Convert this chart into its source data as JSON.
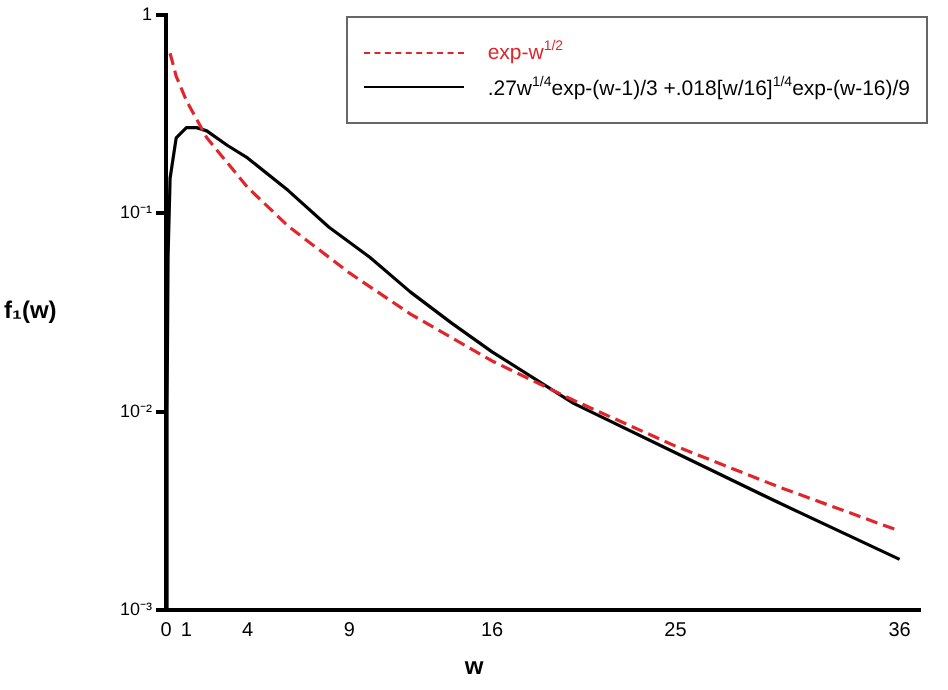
{
  "chart_data": {
    "type": "line",
    "xlabel": "w",
    "ylabel": "f₁(w)",
    "xlim": [
      0,
      37
    ],
    "xticks": [
      0,
      1,
      4,
      9,
      16,
      25,
      36
    ],
    "ylim": [
      0.001,
      1
    ],
    "yticks": [
      {
        "value": 0.001,
        "label": "10⁻³"
      },
      {
        "value": 0.01,
        "label": "10⁻²"
      },
      {
        "value": 0.1,
        "label": "10⁻¹"
      },
      1
    ],
    "log": "y",
    "grid": false,
    "legend": "top right",
    "marker": "none",
    "series": [
      {
        "name": "exp-w$^{1/2}$",
        "color": "#e0262b",
        "line_style": "dashed",
        "x": [
          0.2,
          0.5,
          1,
          2,
          4,
          6,
          9,
          12,
          16,
          20,
          25,
          30,
          36
        ],
        "values": [
          0.64,
          0.49,
          0.37,
          0.24,
          0.135,
          0.086,
          0.05,
          0.031,
          0.018,
          0.0114,
          0.0067,
          0.0042,
          0.0025
        ]
      },
      {
        "name": ".27w$^{1/4}$exp-(w-1)/3  +.018[w/16]$^{1/4}$exp-(w-16)/9",
        "color": "#000000",
        "line_style": "solid",
        "x": [
          0,
          0.05,
          0.1,
          0.2,
          0.5,
          1,
          1.5,
          2,
          3,
          4,
          6,
          8,
          10,
          12,
          14,
          16,
          20,
          25,
          30,
          36
        ],
        "values": [
          0.001,
          0.01,
          0.06,
          0.15,
          0.24,
          0.27,
          0.27,
          0.26,
          0.22,
          0.19,
          0.13,
          0.085,
          0.06,
          0.04,
          0.028,
          0.02,
          0.011,
          0.0062,
          0.0035,
          0.0018
        ]
      }
    ]
  }
}
